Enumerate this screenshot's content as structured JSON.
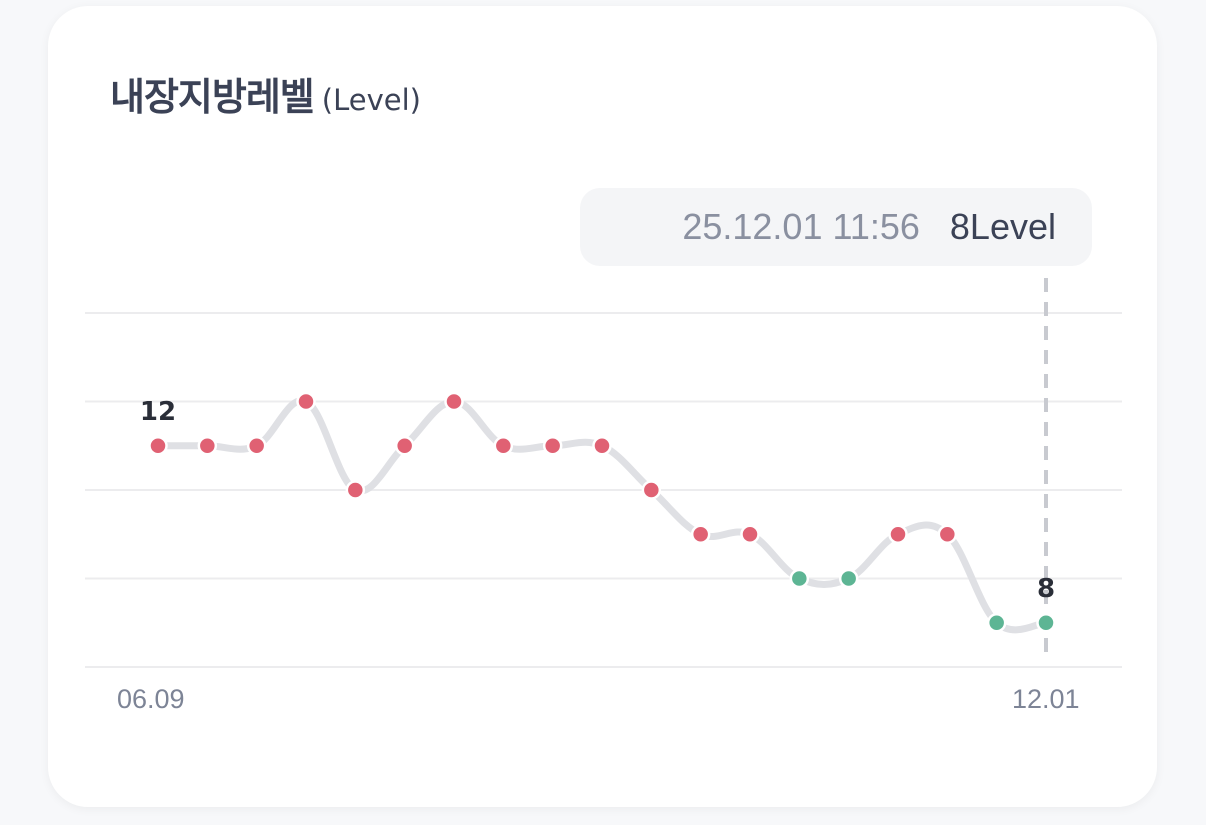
{
  "card": {
    "title": "내장지방레벨",
    "unit": "(Level)",
    "tooltip": {
      "date": "25.12.01 11:56",
      "value": "8Level"
    }
  },
  "chart_data": {
    "type": "line",
    "title": "내장지방레벨",
    "ylabel": "(Level)",
    "x_tick_labels": [
      "06.09",
      "12.01"
    ],
    "values": [
      12,
      12,
      12,
      13,
      11,
      12,
      13,
      12,
      12,
      12,
      11,
      10,
      10,
      9,
      9,
      10,
      10,
      8,
      8
    ],
    "point_labels": [
      {
        "index": 0,
        "text": "12"
      },
      {
        "index": 18,
        "text": "8"
      }
    ],
    "ylim": [
      7,
      15
    ],
    "gridlines": [
      7,
      9,
      11,
      13,
      15
    ],
    "grid": true,
    "highlight_index": 18,
    "colors": {
      "high": "#e06173",
      "low": "#5db594",
      "line": "#dfe0e4",
      "grid": "#ececee",
      "crosshair": "#c8cad0"
    },
    "low_threshold": 9
  }
}
